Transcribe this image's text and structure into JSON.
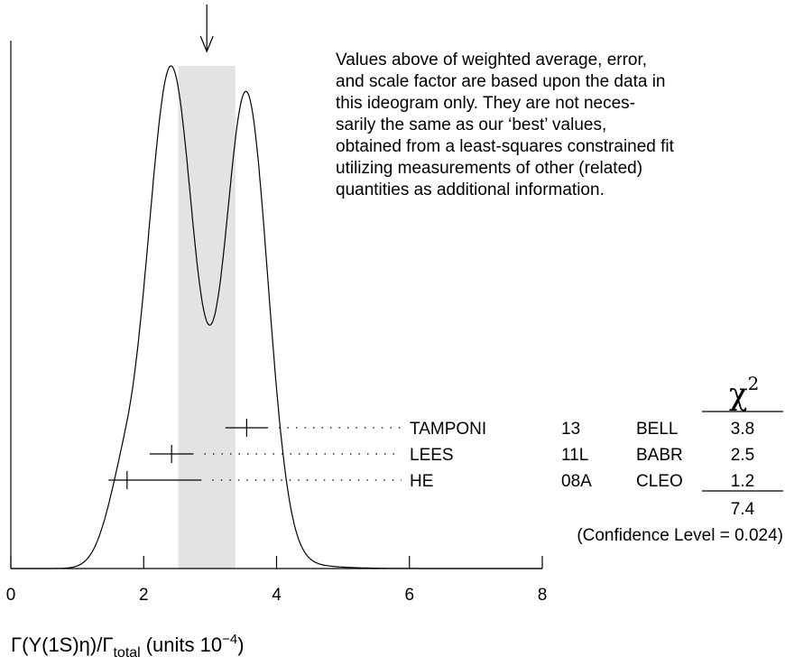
{
  "chart_data": {
    "type": "ideogram",
    "xlim": [
      0,
      8
    ],
    "xticks": [
      0,
      2,
      4,
      6,
      8
    ],
    "x_label": {
      "main": "Γ(Υ(1S)η)/Γ",
      "sub": "total",
      "units": "(units 10",
      "exp": "−4",
      "close": ")"
    },
    "average": {
      "value": 2.95,
      "error": 0.43
    },
    "note": [
      "Values above of weighted average, error,",
      "and scale factor are based upon the data in",
      "this ideogram only.  They are not neces-",
      "sarily the same as our ‘best’ values,",
      "obtained from a least-squares constrained fit",
      "utilizing measurements of other (related)",
      "quantities as additional information."
    ],
    "chi2_symbol": "χ",
    "chi2_exp": "2",
    "measurements": [
      {
        "name": "TAMPONI",
        "year": "13",
        "collab": "BELL",
        "value": 3.55,
        "err_minus": 0.32,
        "err_plus": 0.32,
        "chi2": 3.8
      },
      {
        "name": "LEES",
        "year": "11L",
        "collab": "BABR",
        "value": 2.42,
        "err_minus": 0.33,
        "err_plus": 0.33,
        "chi2": 2.5
      },
      {
        "name": "HE",
        "year": "08A",
        "collab": "CLEO",
        "value": 1.75,
        "err_minus": 0.28,
        "err_plus": 1.12,
        "chi2": 1.2
      }
    ],
    "chi2_total": 7.4,
    "confidence_level": "(Confidence Level = 0.024)"
  }
}
